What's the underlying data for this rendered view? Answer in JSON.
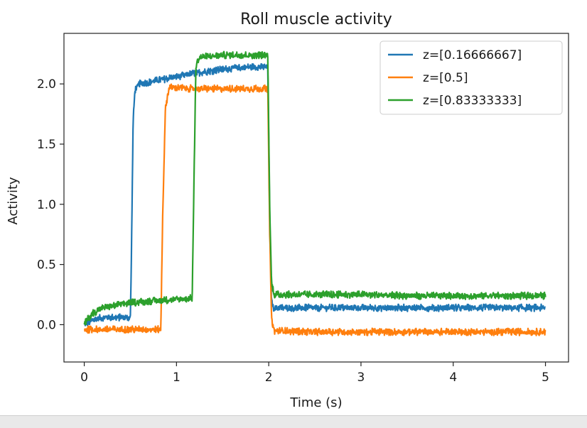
{
  "chart_data": {
    "type": "line",
    "title": "Roll muscle activity",
    "xlabel": "Time (s)",
    "ylabel": "Activity",
    "xlim": [
      -0.22,
      5.25
    ],
    "ylim": [
      -0.31,
      2.42
    ],
    "xticks": [
      0,
      1,
      2,
      3,
      4,
      5
    ],
    "xtick_labels": [
      "0",
      "1",
      "2",
      "3",
      "4",
      "5"
    ],
    "yticks": [
      0.0,
      0.5,
      1.0,
      1.5,
      2.0
    ],
    "ytick_labels": [
      "0.0",
      "0.5",
      "1.0",
      "1.5",
      "2.0"
    ],
    "grid": false,
    "legend_position": "top-right",
    "series": [
      {
        "name": "z=[0.16666667]",
        "color": "#1f77b4",
        "x": [
          0.0,
          0.1,
          0.2,
          0.3,
          0.4,
          0.5,
          0.51,
          0.53,
          0.55,
          0.6,
          0.8,
          1.0,
          1.2,
          1.4,
          1.6,
          1.8,
          1.99,
          2.01,
          2.03,
          2.05,
          2.5,
          3.0,
          3.5,
          4.0,
          4.5,
          5.0
        ],
        "y": [
          0.0,
          0.04,
          0.06,
          0.06,
          0.06,
          0.06,
          0.5,
          1.7,
          1.95,
          2.0,
          2.03,
          2.06,
          2.09,
          2.11,
          2.13,
          2.14,
          2.14,
          0.9,
          0.2,
          0.14,
          0.14,
          0.14,
          0.14,
          0.14,
          0.14,
          0.14
        ],
        "noise": 0.03
      },
      {
        "name": "z=[0.5]",
        "color": "#ff7f0e",
        "x": [
          0.0,
          0.2,
          0.4,
          0.6,
          0.83,
          0.85,
          0.88,
          0.92,
          1.0,
          1.2,
          1.5,
          1.8,
          1.99,
          2.01,
          2.03,
          2.06,
          2.5,
          3.0,
          3.5,
          4.0,
          4.5,
          5.0
        ],
        "y": [
          -0.04,
          -0.04,
          -0.04,
          -0.04,
          -0.04,
          0.9,
          1.8,
          1.97,
          1.97,
          1.96,
          1.96,
          1.96,
          1.96,
          0.8,
          0.05,
          -0.05,
          -0.06,
          -0.06,
          -0.06,
          -0.06,
          -0.06,
          -0.06
        ],
        "noise": 0.03
      },
      {
        "name": "z=[0.83333333]",
        "color": "#2ca02c",
        "x": [
          0.0,
          0.05,
          0.1,
          0.2,
          0.4,
          0.6,
          0.8,
          1.0,
          1.17,
          1.19,
          1.21,
          1.25,
          1.5,
          1.8,
          1.99,
          2.01,
          2.03,
          2.06,
          2.5,
          3.0,
          3.5,
          4.0,
          4.5,
          5.0
        ],
        "y": [
          0.0,
          0.06,
          0.1,
          0.14,
          0.17,
          0.19,
          0.2,
          0.21,
          0.22,
          1.2,
          2.15,
          2.22,
          2.24,
          2.24,
          2.24,
          1.0,
          0.35,
          0.25,
          0.25,
          0.25,
          0.24,
          0.24,
          0.24,
          0.24
        ],
        "noise": 0.03
      }
    ]
  }
}
